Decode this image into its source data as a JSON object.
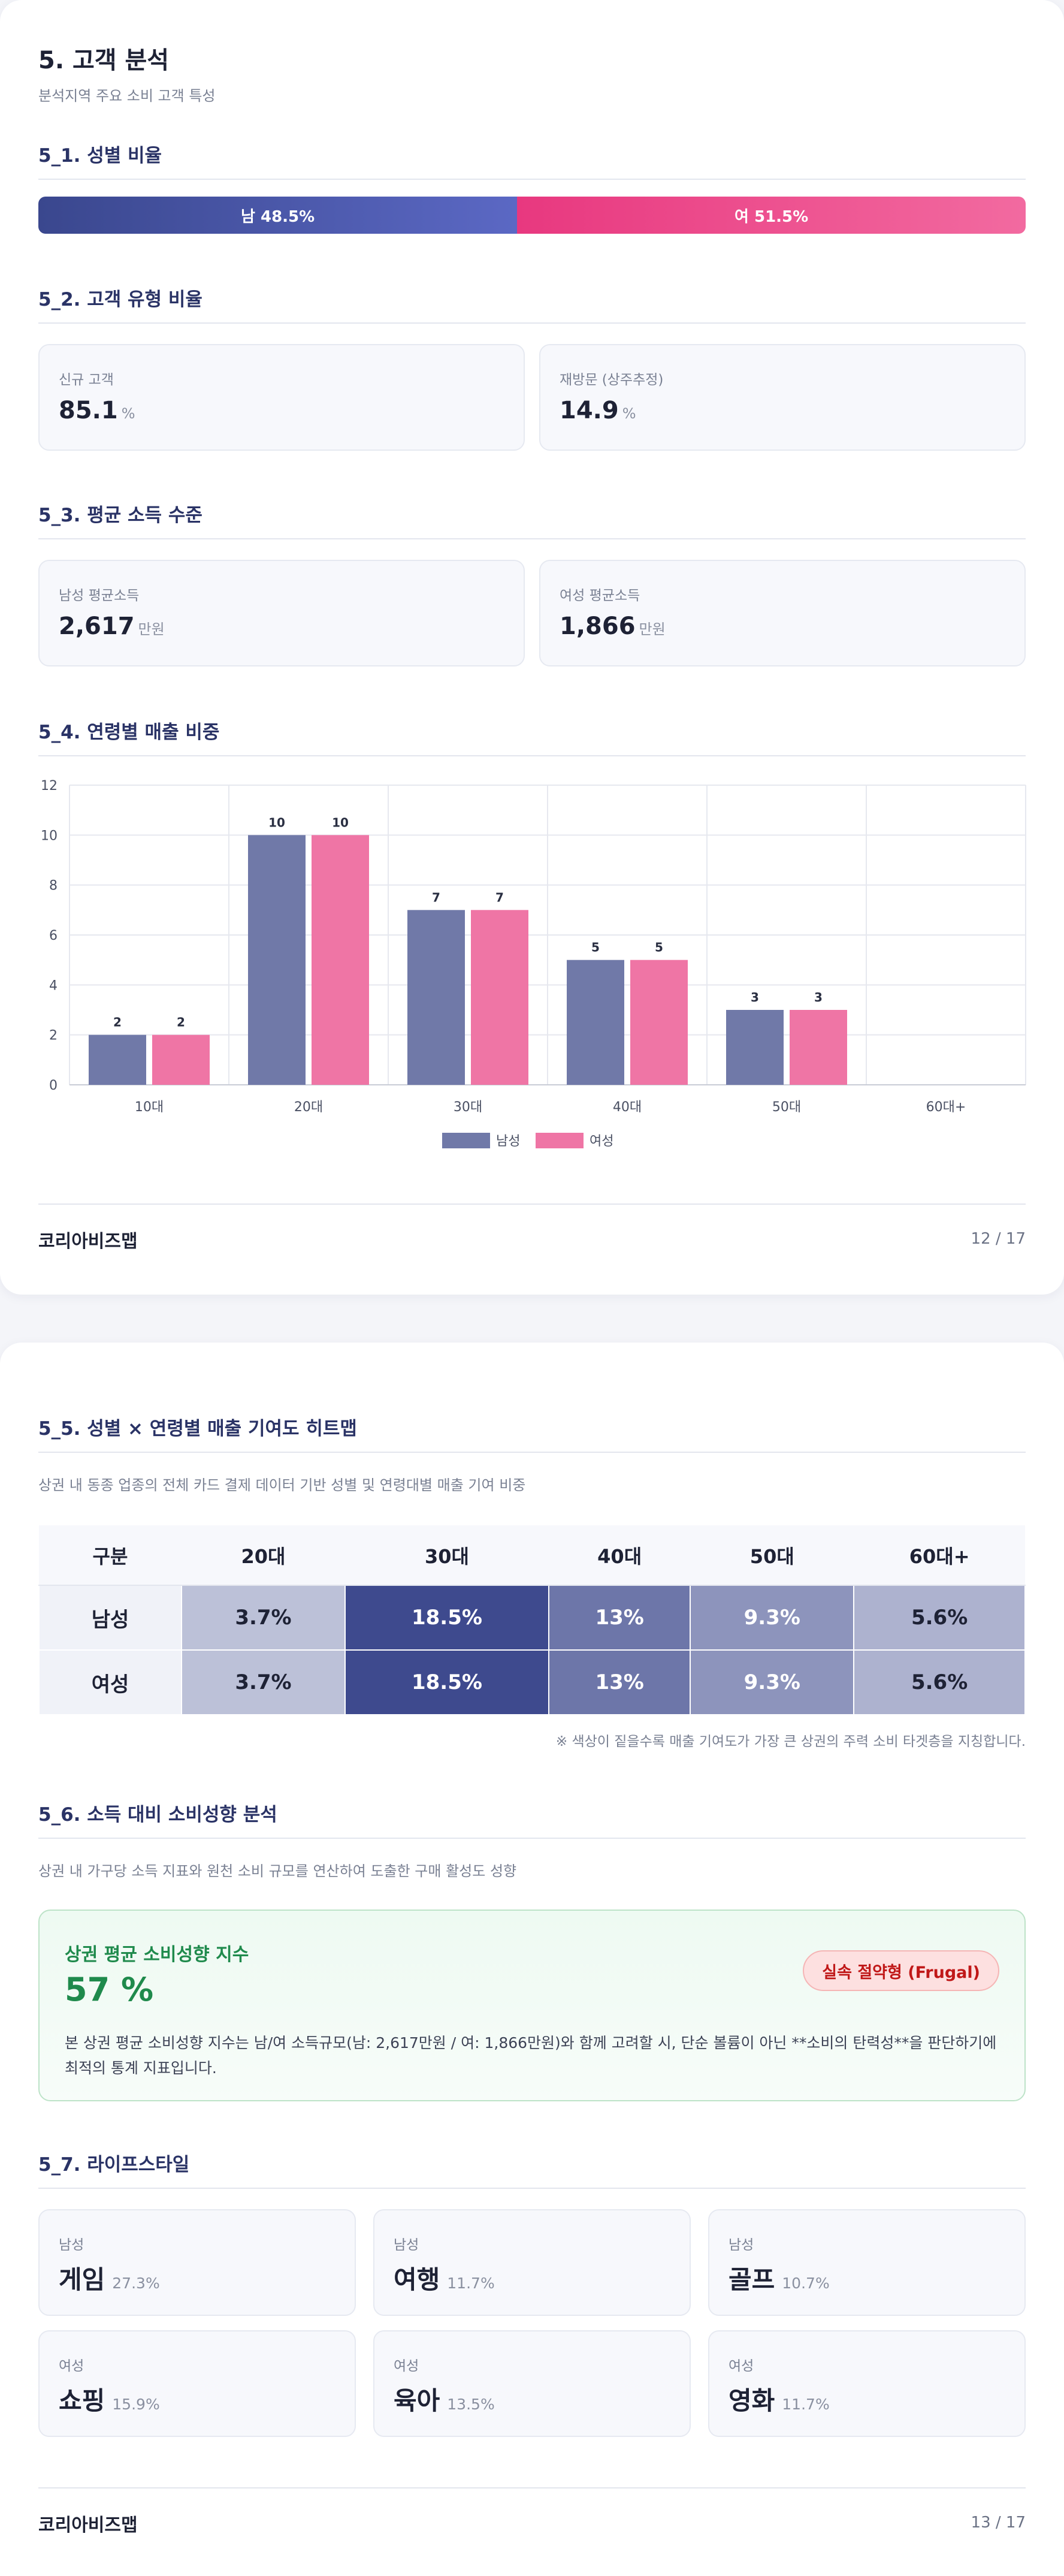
{
  "page1": {
    "title": "5. 고객 분석",
    "subtitle": "분석지역 주요 소비 고객 특성",
    "gender": {
      "heading": "5_1. 성별 비율",
      "male_label": "남 48.5%",
      "female_label": "여 51.5%",
      "male_share": 48.5,
      "female_share": 51.5,
      "male_color": "#4a56a8",
      "female_color": "#ec4b8b"
    },
    "customer_type": {
      "heading": "5_2. 고객 유형 비율",
      "new": {
        "label": "신규 고객",
        "value": "85.1",
        "unit": "%"
      },
      "revisit": {
        "label": "재방문 (상주추정)",
        "value": "14.9",
        "unit": "%"
      }
    },
    "income": {
      "heading": "5_3. 평균 소득 수준",
      "male": {
        "label": "남성 평균소득",
        "value": "2,617",
        "unit": "만원"
      },
      "female": {
        "label": "여성 평균소득",
        "value": "1,866",
        "unit": "만원"
      }
    },
    "age_sales": {
      "heading": "5_4. 연령별 매출 비중"
    },
    "footer": {
      "brand": "코리아비즈맵",
      "page": "12 / 17"
    }
  },
  "chart_data": {
    "type": "bar",
    "categories": [
      "10대",
      "20대",
      "30대",
      "40대",
      "50대",
      "60대+"
    ],
    "series": [
      {
        "name": "남성",
        "values": [
          2,
          10,
          7,
          5,
          3,
          0
        ],
        "color": "#7079a8"
      },
      {
        "name": "여성",
        "values": [
          2,
          10,
          7,
          5,
          3,
          0
        ],
        "color": "#ef75a5"
      }
    ],
    "data_labels": [
      [
        "2",
        "10",
        "7",
        "5",
        "3",
        ""
      ],
      [
        "2",
        "10",
        "7",
        "5",
        "3",
        ""
      ]
    ],
    "y_ticks": [
      "0",
      "2",
      "4",
      "6",
      "8",
      "10",
      "12"
    ],
    "ylim": [
      0,
      12
    ],
    "grid": true,
    "legend": "bottom-center"
  },
  "page2": {
    "heatmap": {
      "heading": "5_5. 성별 × 연령별 매출 기여도 히트맵",
      "subtitle": "상권 내 동종 업종의 전체 카드 결제 데이터 기반 성별 및 연령대별 매출 기여 비중",
      "columns": [
        "구분",
        "20대",
        "30대",
        "40대",
        "50대",
        "60대+"
      ],
      "rows": [
        {
          "label": "남성",
          "cells": [
            "3.7%",
            "18.5%",
            "13%",
            "9.3%",
            "5.6%"
          ]
        },
        {
          "label": "여성",
          "cells": [
            "3.7%",
            "18.5%",
            "13%",
            "9.3%",
            "5.6%"
          ]
        }
      ],
      "values": [
        3.7,
        18.5,
        13,
        9.3,
        5.6
      ],
      "note": "※ 색상이 짙을수록 매출 기여도가 가장 큰 상권의 주력 소비 타겟층을 지칭합니다."
    },
    "propensity": {
      "heading": "5_6. 소득 대비 소비성향 분석",
      "subtitle": "상권 내 가구당 소득 지표와 원천 소비 규모를 연산하여 도출한 구매 활성도 성향",
      "index_title": "상권 평균 소비성향 지수",
      "index_value": "57 %",
      "badge": "실속 절약형 (Frugal)",
      "description": "본 상권 평균 소비성향 지수는 남/여 소득규모(남: 2,617만원 / 여: 1,866만원)와 함께 고려할 시, 단순 볼륨이 아닌 **소비의 탄력성**을 판단하기에 최적의 통계 지표입니다."
    },
    "lifestyle": {
      "heading": "5_7. 라이프스타일",
      "items": [
        {
          "gender": "남성",
          "name": "게임",
          "pct": "27.3%"
        },
        {
          "gender": "남성",
          "name": "여행",
          "pct": "11.7%"
        },
        {
          "gender": "남성",
          "name": "골프",
          "pct": "10.7%"
        },
        {
          "gender": "여성",
          "name": "쇼핑",
          "pct": "15.9%"
        },
        {
          "gender": "여성",
          "name": "육아",
          "pct": "13.5%"
        },
        {
          "gender": "여성",
          "name": "영화",
          "pct": "11.7%"
        }
      ]
    },
    "footer": {
      "brand": "코리아비즈맵",
      "page": "13 / 17"
    }
  }
}
